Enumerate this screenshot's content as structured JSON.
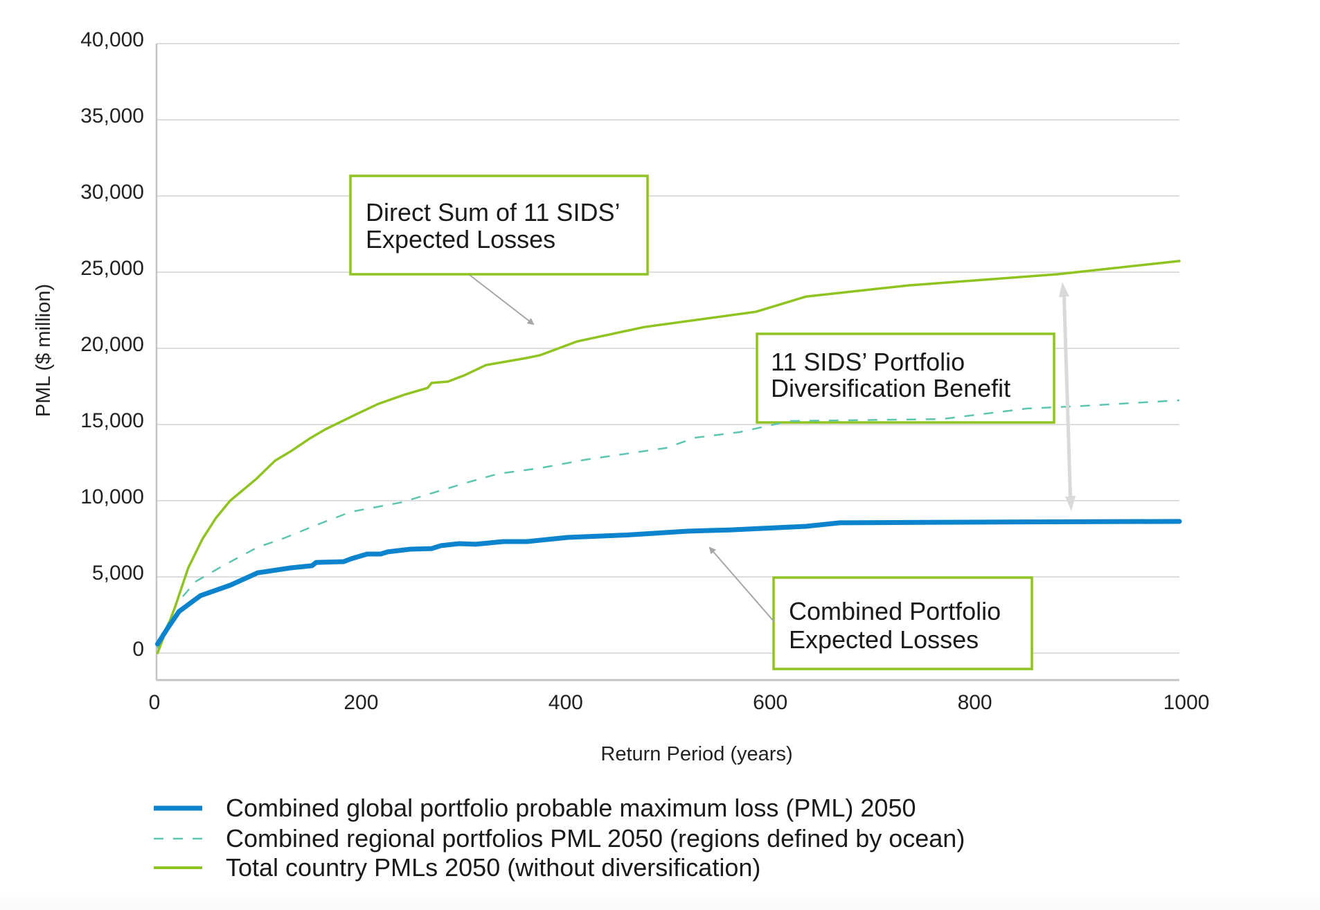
{
  "chart_data": {
    "type": "line",
    "title": "",
    "xlabel": "Return Period (years)",
    "ylabel": "PML ($ million)",
    "xlim": [
      0,
      1000
    ],
    "ylim": [
      0,
      40000
    ],
    "x_ticks": [
      0,
      200,
      400,
      600,
      800,
      1000
    ],
    "x_tick_labels": [
      "0",
      "200",
      "400",
      "600",
      "800",
      "1000"
    ],
    "y_ticks": [
      0,
      5000,
      10000,
      15000,
      20000,
      25000,
      30000,
      35000,
      40000
    ],
    "y_tick_labels": [
      "0",
      "5,000",
      "10,000",
      "15,000",
      "20,000",
      "25,000",
      "30,000",
      "35,000",
      "40,000"
    ],
    "grid": "horizontal",
    "legend_position": "bottom",
    "series": [
      {
        "name": "Combined global portfolio probable maximum loss (PML) 2050",
        "style": "solid-thick",
        "color": "#0b84cd",
        "x": [
          1,
          11,
          22,
          43,
          72,
          99,
          131,
          152,
          156,
          183,
          190,
          206,
          219,
          226,
          248,
          269,
          278,
          296,
          312,
          339,
          362,
          402,
          460,
          519,
          560,
          635,
          668,
          750,
          850,
          1000
        ],
        "y": [
          590,
          1640,
          2730,
          3770,
          4450,
          5270,
          5590,
          5730,
          5950,
          6000,
          6180,
          6500,
          6500,
          6640,
          6820,
          6860,
          7050,
          7180,
          7140,
          7320,
          7320,
          7590,
          7750,
          8000,
          8080,
          8320,
          8550,
          8580,
          8610,
          8640
        ]
      },
      {
        "name": "Combined regional portfolios PML 2050 (regions defined by ocean)",
        "style": "dashed",
        "color": "#5cc5b1",
        "x": [
          1,
          19,
          38,
          65,
          99,
          125,
          160,
          190,
          240,
          303,
          334,
          375,
          420,
          498,
          527,
          570,
          619,
          700,
          768,
          851,
          900,
          1000
        ],
        "y": [
          300,
          3180,
          4680,
          5730,
          6950,
          7550,
          8500,
          9270,
          9900,
          11180,
          11770,
          12140,
          12700,
          13460,
          14140,
          14500,
          15230,
          15300,
          15360,
          16050,
          16200,
          16590
        ]
      },
      {
        "name": "Total country PMLs 2050 (without diversification)",
        "style": "solid",
        "color": "#8fc31f",
        "x": [
          1,
          18,
          31,
          45,
          58,
          72,
          97,
          116,
          131,
          150,
          165,
          197,
          217,
          242,
          265,
          269,
          285,
          301,
          322,
          362,
          375,
          411,
          477,
          586,
          635,
          735,
          880,
          1000
        ],
        "y": [
          0,
          3000,
          5590,
          7500,
          8860,
          10000,
          11400,
          12630,
          13230,
          14090,
          14680,
          15730,
          16360,
          16950,
          17400,
          17730,
          17820,
          18230,
          18900,
          19370,
          19550,
          20450,
          21400,
          22400,
          23400,
          24130,
          24860,
          25730
        ]
      }
    ],
    "annotations": [
      {
        "id": "direct-sum",
        "lines": [
          "Direct Sum of 11 SIDS’",
          "Expected Losses"
        ],
        "border_color": "#8fc31f",
        "points_to": "Total country PMLs 2050 (without diversification)"
      },
      {
        "id": "diversification",
        "lines": [
          "11 SIDS’ Portfolio",
          "Diversification Benefit"
        ],
        "border_color": "#8fc31f",
        "spans": "gap between total country PMLs and combined global portfolio PML at ~880 years"
      },
      {
        "id": "combined",
        "lines": [
          "Combined Portfolio",
          "Expected Losses"
        ],
        "border_color": "#8fc31f",
        "points_to": "Combined global portfolio probable maximum loss (PML) 2050"
      }
    ]
  },
  "colors": {
    "grid": "#dddddd",
    "axis": "#c4c4c4",
    "annotation_arrow": "#a6a6a6",
    "benefit_arrow": "#d9d9d9",
    "text": "#1a1a1a"
  }
}
